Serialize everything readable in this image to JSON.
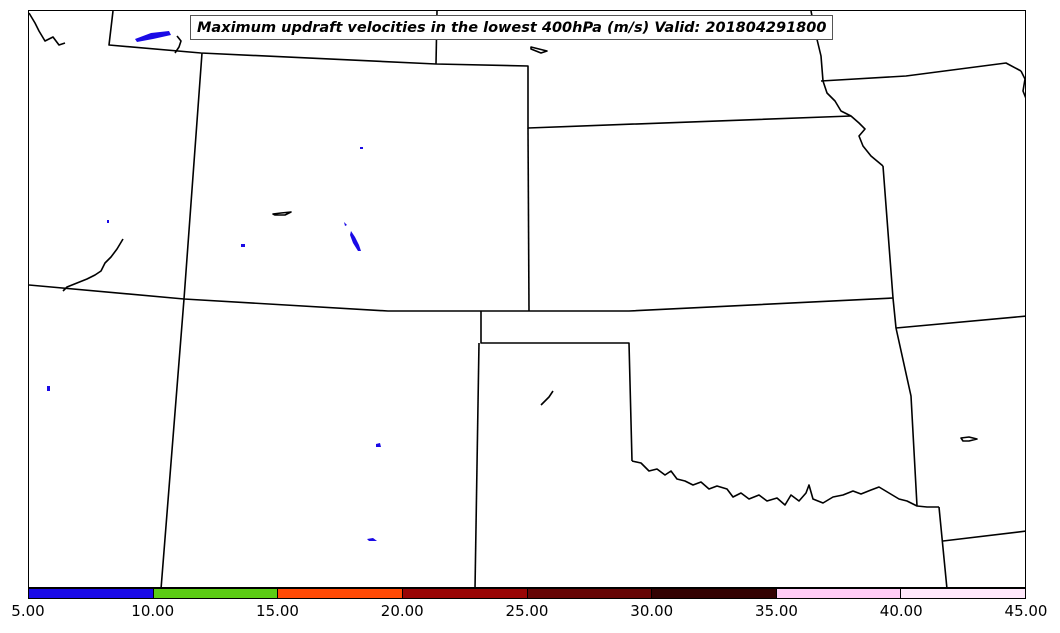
{
  "title": "Maximum updraft velocities in the lowest 400hPa (m/s) Valid: 201804291800",
  "colorbar": {
    "colors": [
      "#1a0ae6",
      "#5ccc14",
      "#ff4a05",
      "#990505",
      "#660505",
      "#330202",
      "#ffccf5",
      "#ffe8fb"
    ],
    "tick_labels": [
      "5.00",
      "10.00",
      "15.00",
      "20.00",
      "25.00",
      "30.00",
      "35.00",
      "40.00",
      "45.00"
    ]
  },
  "map": {
    "border_color": "#000000",
    "updraft_color": "#1a0ae6"
  }
}
